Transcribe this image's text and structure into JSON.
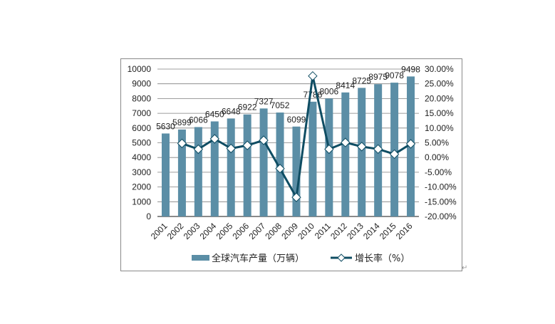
{
  "chart_data": {
    "type": "bar+line",
    "title": "",
    "categories": [
      "2001",
      "2002",
      "2003",
      "2004",
      "2005",
      "2006",
      "2007",
      "2008",
      "2009",
      "2010",
      "2011",
      "2012",
      "2013",
      "2014",
      "2015",
      "2016"
    ],
    "series": [
      {
        "name": "全球汽车产量（万辆）",
        "type": "bar",
        "axis": "left",
        "values": [
          5630,
          5899,
          6066,
          6450,
          6648,
          6922,
          7327,
          7052,
          6099,
          7786,
          8006,
          8414,
          8725,
          8975,
          9078,
          9498
        ],
        "labels": [
          "5630",
          "5899",
          "6066",
          "6450",
          "6648",
          "6922",
          "7327",
          "7052",
          "6099",
          "7786",
          "8006",
          "8414",
          "8725",
          "8975",
          "9078",
          "9498"
        ]
      },
      {
        "name": "增长率（%）",
        "type": "line",
        "axis": "right",
        "values": [
          null,
          4.78,
          2.83,
          6.33,
          3.07,
          4.12,
          5.85,
          -3.75,
          -13.51,
          27.66,
          2.83,
          5.1,
          3.7,
          2.87,
          1.15,
          4.63
        ]
      }
    ],
    "y_left": {
      "min": 0,
      "max": 10000,
      "step": 1000,
      "ticks": [
        "0",
        "1000",
        "2000",
        "3000",
        "4000",
        "5000",
        "6000",
        "7000",
        "8000",
        "9000",
        "10000"
      ]
    },
    "y_right": {
      "min": -20,
      "max": 30,
      "step": 5,
      "ticks": [
        "-20.00%",
        "-15.00%",
        "-10.00%",
        "-5.00%",
        "0.00%",
        "5.00%",
        "10.00%",
        "15.00%",
        "20.00%",
        "25.00%",
        "30.00%"
      ]
    },
    "xlabel": "",
    "ylabel": "",
    "grid": true,
    "legend_position": "bottom",
    "colors": {
      "bar": "#5b8ea6",
      "line": "#0f4d63",
      "marker_fill": "#ffffff",
      "grid": "#7f7f7f",
      "frame": "#8a8a8a"
    }
  },
  "legend": {
    "bar_label": "全球汽车产量（万辆）",
    "line_label": "增长率（%）"
  },
  "return_mark": "↵"
}
